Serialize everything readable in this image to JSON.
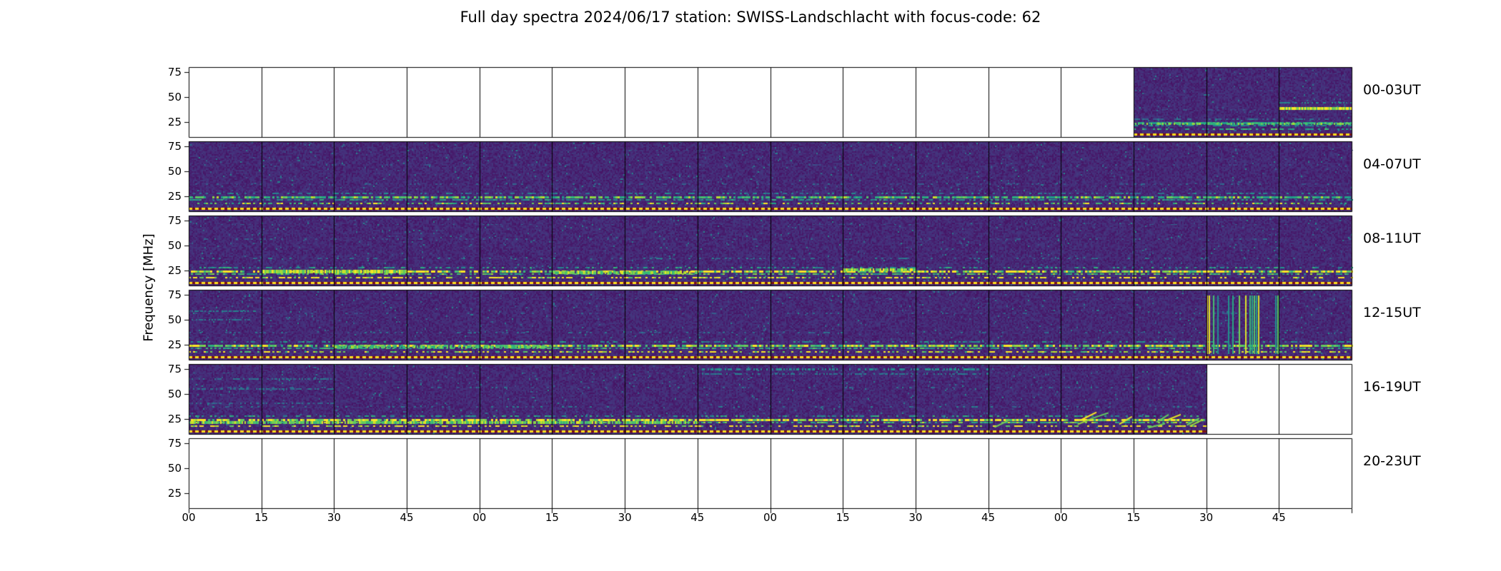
{
  "title": "Full day spectra 2024/06/17 station: SWISS-Landschlacht with focus-code: 62",
  "ylabel": "Frequency [MHz]",
  "chart_data": {
    "type": "heatmap",
    "title": "Full day spectra 2024/06/17 station: SWISS-Landschlacht with focus-code: 62",
    "station": "SWISS-Landschlacht",
    "date": "2024/06/17",
    "focus_code": "62",
    "colormap": "viridis",
    "ylabel": "Frequency [MHz]",
    "y_ticks": [
      "75",
      "50",
      "25"
    ],
    "y_range_mhz": [
      10,
      80
    ],
    "x_tick_labels": [
      "00",
      "15",
      "30",
      "45",
      "00",
      "15",
      "30",
      "45",
      "00",
      "15",
      "30",
      "45",
      "00",
      "15",
      "30",
      "45"
    ],
    "segments_per_row": 16,
    "minutes_per_segment": 15,
    "grid": true,
    "legend": "none",
    "rows": [
      {
        "label": "00-03UT",
        "data_start": 13,
        "data_end": 16,
        "coverage": "data only from ~03:15 UT, bright narrowband emission near 40 MHz in last segment"
      },
      {
        "label": "04-07UT",
        "data_start": 0,
        "data_end": 16,
        "coverage": "full, persistent RFI bands near 25 MHz"
      },
      {
        "label": "08-11UT",
        "data_start": 0,
        "data_end": 16,
        "coverage": "full, strong bright bands near 25 MHz"
      },
      {
        "label": "12-15UT",
        "data_start": 0,
        "data_end": 16,
        "coverage": "full, bright vertical striping near 15:30"
      },
      {
        "label": "16-19UT",
        "data_start": 0,
        "data_end": 14,
        "coverage": "data until ~19:30 UT, strong low-frequency activity"
      },
      {
        "label": "20-23UT",
        "data_start": 0,
        "data_end": 0,
        "coverage": "no data"
      }
    ]
  }
}
